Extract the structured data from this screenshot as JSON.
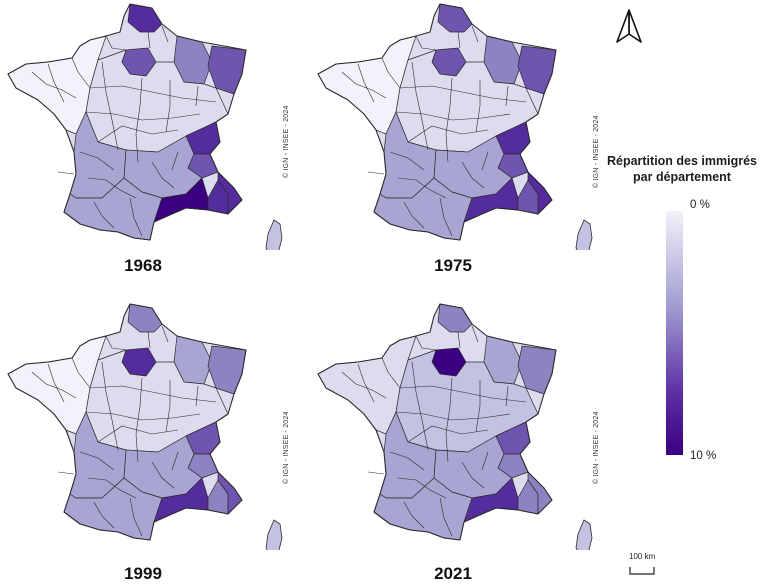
{
  "panels": [
    {
      "year": "1968",
      "key": "p1968",
      "credit": "© IGN - INSEE - 2024"
    },
    {
      "year": "1975",
      "key": "p1975",
      "credit": "© IGN - INSEE - 2024"
    },
    {
      "year": "1999",
      "key": "p1999",
      "credit": "© IGN - INSEE - 2024"
    },
    {
      "year": "2021",
      "key": "p2021",
      "credit": "© IGN - INSEE - 2024"
    }
  ],
  "legend": {
    "title_line1": "Répartition des immigrés",
    "title_line2": "par département",
    "min_label": "0 %",
    "max_label": "10 %",
    "color_low": "#f3f2fa",
    "color_mid": "#9e9ad0",
    "color_high": "#3a0081"
  },
  "scale_label": "100 km",
  "north_icon": "north-arrow-icon",
  "colors": {
    "border": "#2b2b2b",
    "ramp": [
      "#f3f2fa",
      "#dcdcee",
      "#c3c2e2",
      "#a8a5d3",
      "#8c83c2",
      "#6f55b0",
      "#552c9e",
      "#3a0081"
    ]
  },
  "department_levels": {
    "p1968": {
      "nord": 6,
      "idf": 5,
      "lorraine": 4,
      "alsace": 5,
      "rhone": 6,
      "isere": 5,
      "bdr": 7,
      "var": 6,
      "am": 6,
      "sw": 3,
      "south": 3,
      "pyr": 3,
      "center": 1,
      "west": 0
    },
    "p1975": {
      "nord": 5,
      "idf": 5,
      "lorraine": 4,
      "alsace": 5,
      "rhone": 6,
      "isere": 5,
      "bdr": 6,
      "var": 5,
      "am": 6,
      "sw": 3,
      "south": 3,
      "pyr": 3,
      "center": 1,
      "west": 0
    },
    "p1999": {
      "nord": 4,
      "idf": 6,
      "lorraine": 3,
      "alsace": 4,
      "rhone": 5,
      "isere": 4,
      "bdr": 6,
      "var": 4,
      "am": 5,
      "sw": 3,
      "south": 3,
      "pyr": 3,
      "center": 1,
      "west": 0
    },
    "p2021": {
      "nord": 4,
      "idf": 7,
      "lorraine": 3,
      "alsace": 4,
      "rhone": 5,
      "isere": 4,
      "bdr": 6,
      "var": 4,
      "am": 4,
      "sw": 3,
      "south": 3,
      "pyr": 3,
      "center": 2,
      "west": 1
    }
  }
}
